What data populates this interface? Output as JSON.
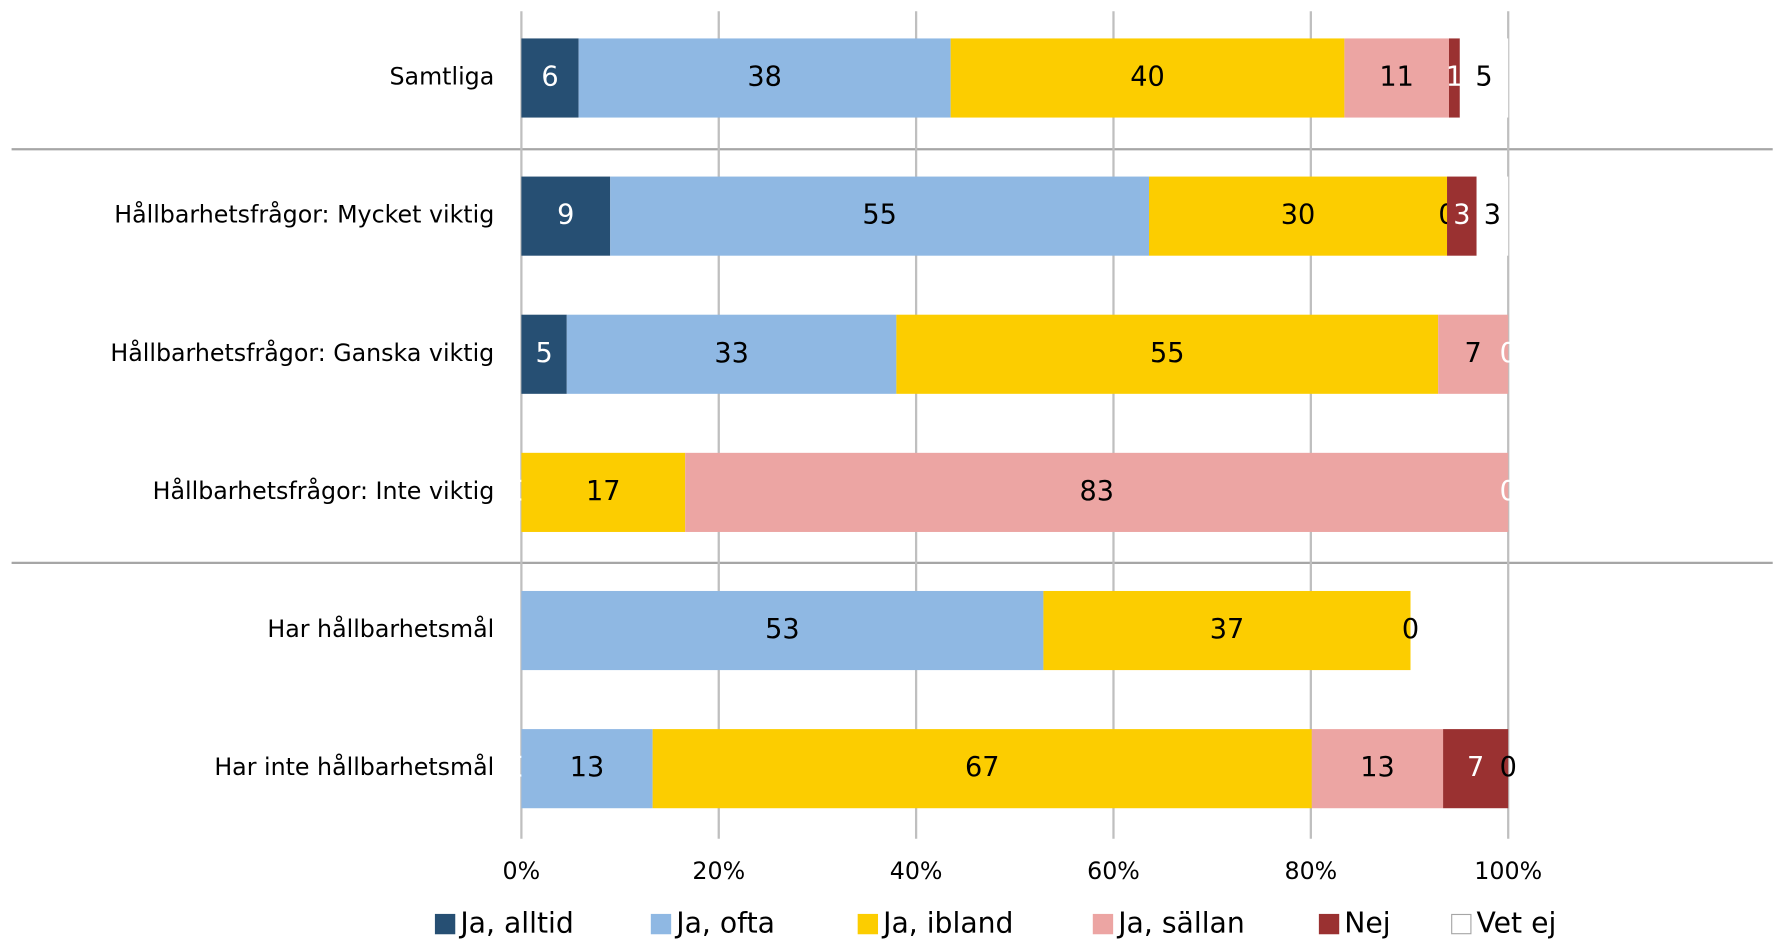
{
  "chart_data": {
    "type": "stacked-bar-horizontal",
    "categories": [
      "Samtliga",
      "Hållbarhetsfrågor: Mycket viktig",
      "Hållbarhetsfrågor: Ganska viktig",
      "Hållbarhetsfrågor: Inte viktig",
      "Har hållbarhetsmål",
      "Har inte hållbarhetsmål"
    ],
    "series": [
      {
        "name": "Ja, alltid",
        "color": "#264f73",
        "values": [
          5.8,
          9.0,
          4.6,
          0,
          null,
          0
        ],
        "value_labels": [
          "6",
          "9",
          "5",
          "0",
          null,
          "0"
        ]
      },
      {
        "name": "Ja, ofta",
        "color": "#8fb8e3",
        "values": [
          37.7,
          54.6,
          33.4,
          null,
          52.9,
          13.3
        ],
        "value_labels": [
          "38",
          "55",
          "33",
          null,
          "53",
          "13"
        ]
      },
      {
        "name": "Ja, ibland",
        "color": "#fccd00",
        "values": [
          39.9,
          30.2,
          54.9,
          16.6,
          37.2,
          66.8
        ],
        "value_labels": [
          "40",
          "30",
          "55",
          "17",
          "37",
          "67"
        ]
      },
      {
        "name": "Ja, sällan",
        "color": "#eca5a3",
        "values": [
          10.6,
          0,
          7.1,
          83.4,
          0,
          13.3
        ],
        "value_labels": [
          "11",
          "0",
          "7",
          "83",
          "0",
          "13"
        ]
      },
      {
        "name": "Nej",
        "color": "#9a3131",
        "values": [
          1.1,
          3.0,
          0,
          0,
          null,
          6.6
        ],
        "value_labels": [
          "1",
          "3",
          "0",
          "0",
          null,
          "7"
        ]
      },
      {
        "name": "Vet ej",
        "color": "#ffffff",
        "values": [
          4.9,
          3.2,
          null,
          null,
          null,
          0
        ],
        "value_labels": [
          "5",
          "3",
          null,
          null,
          null,
          "0"
        ]
      }
    ],
    "xlim": [
      0,
      100
    ],
    "xticks": [
      {
        "value": 0,
        "label": "0%"
      },
      {
        "value": 20,
        "label": "20%"
      },
      {
        "value": 40,
        "label": "40%"
      },
      {
        "value": 60,
        "label": "60%"
      },
      {
        "value": 80,
        "label": "80%"
      },
      {
        "value": 100,
        "label": "100%"
      }
    ],
    "grid": true
  }
}
